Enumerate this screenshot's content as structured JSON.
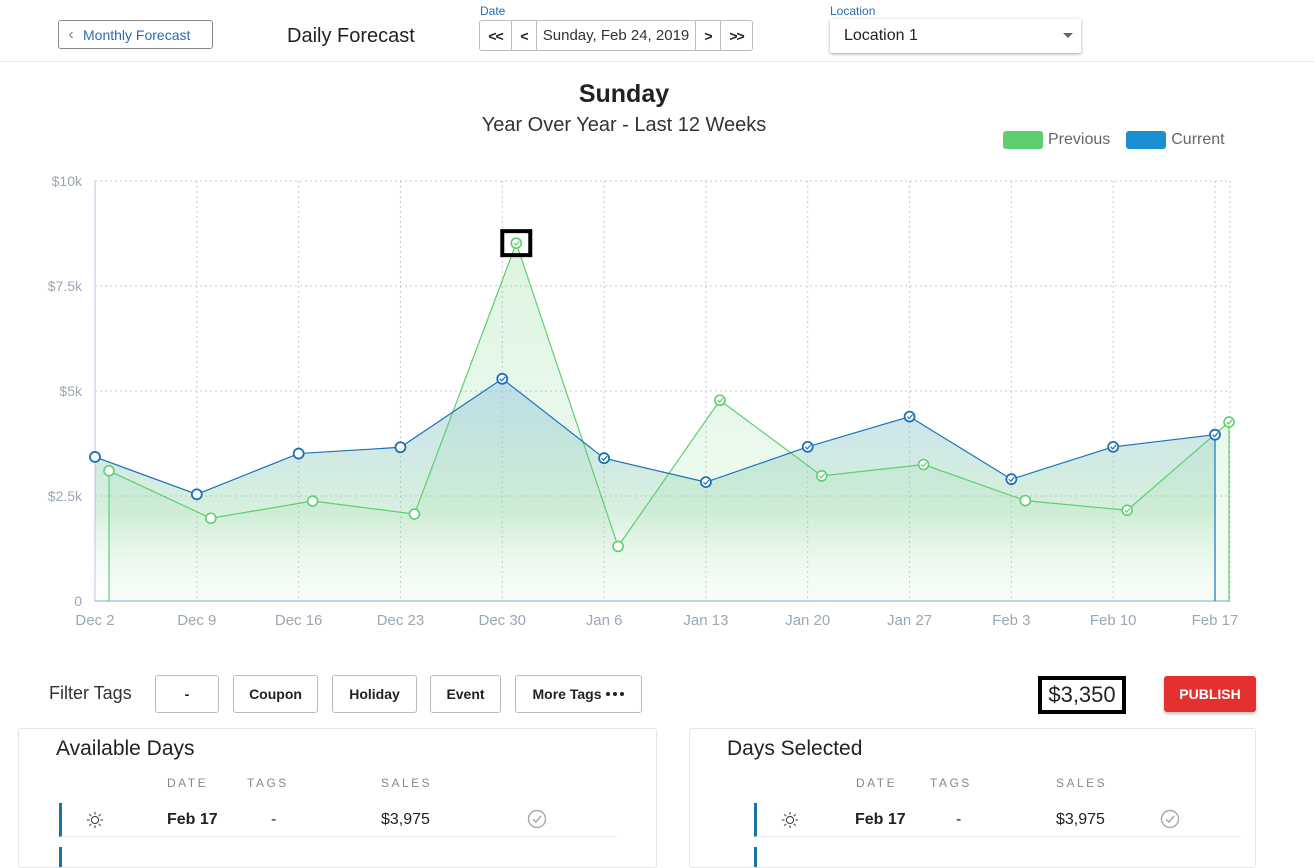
{
  "header": {
    "back_label": "Monthly Forecast",
    "page_title": "Daily Forecast",
    "date_label": "Date",
    "date_value": "Sunday, Feb 24, 2019",
    "nav_first": "<<",
    "nav_prev": "<",
    "nav_next": ">",
    "nav_last": ">>",
    "location_label": "Location",
    "location_value": "Location 1"
  },
  "chart_data": {
    "type": "line",
    "title": "Sunday",
    "subtitle": "Year Over Year - Last 12 Weeks",
    "categories": [
      "Dec 2",
      "Dec 9",
      "Dec 16",
      "Dec 23",
      "Dec 30",
      "Jan 6",
      "Jan 13",
      "Jan 20",
      "Jan 27",
      "Feb 3",
      "Feb 10",
      "Feb 17"
    ],
    "series": [
      {
        "name": "Previous",
        "color": "#5ecf6f",
        "values": [
          3100,
          1970,
          2380,
          2070,
          8520,
          1300,
          4780,
          2980,
          3250,
          2390,
          2160,
          4260
        ]
      },
      {
        "name": "Current",
        "color": "#1a8fd1",
        "values": [
          3430,
          2540,
          3510,
          3660,
          5290,
          3400,
          2830,
          3670,
          4390,
          2900,
          3670,
          3960
        ]
      }
    ],
    "y_ticks": [
      "0",
      "$2.5k",
      "$5k",
      "$7.5k",
      "$10k"
    ],
    "ylim": [
      0,
      10000
    ],
    "grid": true,
    "legend_position": "top-right",
    "highlighted_point": {
      "series": "Previous",
      "category": "Dec 30"
    }
  },
  "filters": {
    "label": "Filter Tags",
    "tags": [
      "-",
      "Coupon",
      "Holiday",
      "Event",
      "More Tags"
    ],
    "total": "$3,350",
    "publish_label": "PUBLISH"
  },
  "available_days": {
    "title": "Available Days",
    "columns": [
      "DATE",
      "TAGS",
      "SALES"
    ],
    "rows": [
      {
        "date": "Feb 17",
        "tags": "-",
        "sales": "$3,975"
      }
    ]
  },
  "days_selected": {
    "title": "Days Selected",
    "columns": [
      "DATE",
      "TAGS",
      "SALES"
    ],
    "rows": [
      {
        "date": "Feb 17",
        "tags": "-",
        "sales": "$3,975"
      }
    ]
  }
}
